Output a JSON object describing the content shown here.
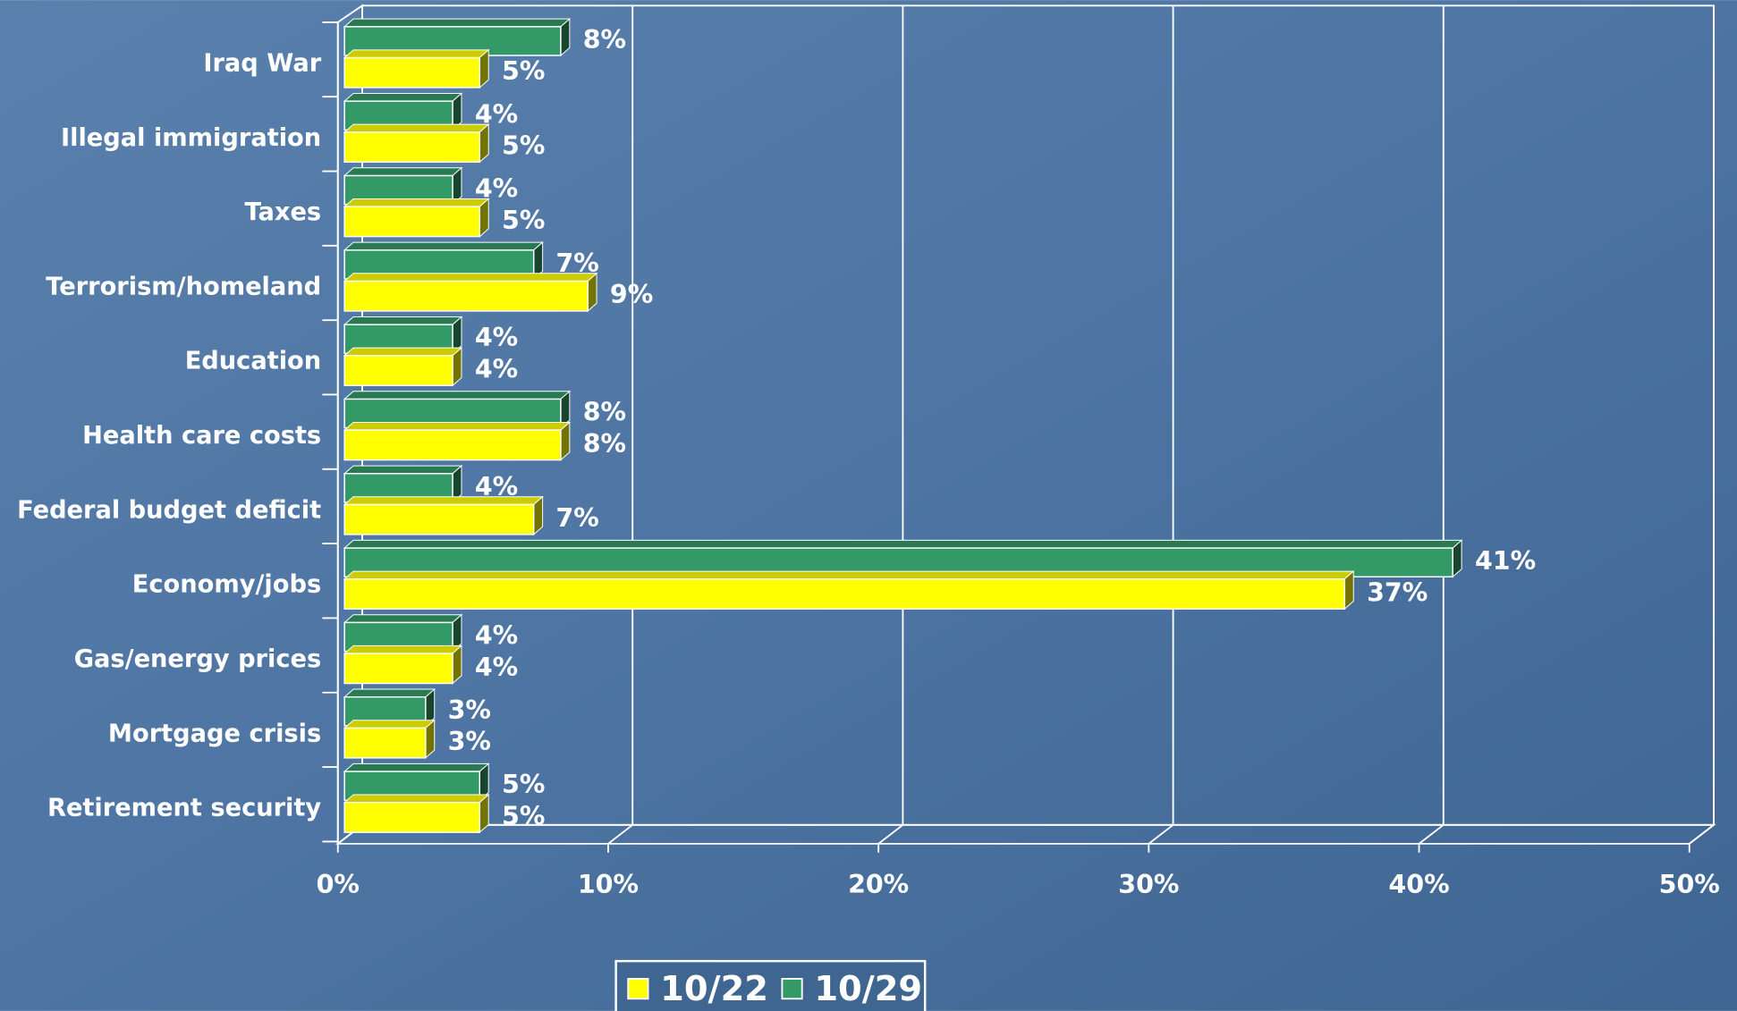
{
  "chart_data": {
    "type": "bar",
    "orientation": "horizontal",
    "categories": [
      "Iraq War",
      "Illegal immigration",
      "Taxes",
      "Terrorism/homeland",
      "Education",
      "Health care costs",
      "Federal budget deficit",
      "Economy/jobs",
      "Gas/energy prices",
      "Mortgage crisis",
      "Retirement security"
    ],
    "series": [
      {
        "name": "10/22",
        "color": "#ffff00",
        "values": [
          5,
          5,
          5,
          9,
          4,
          8,
          7,
          37,
          4,
          3,
          5
        ],
        "value_labels": [
          "5%",
          "5%",
          "5%",
          "9%",
          "4%",
          "8%",
          "7%",
          "37%",
          "4%",
          "3%",
          "5%"
        ]
      },
      {
        "name": "10/29",
        "color": "#339966",
        "values": [
          8,
          4,
          4,
          7,
          4,
          8,
          4,
          41,
          4,
          3,
          5
        ],
        "value_labels": [
          "8%",
          "4%",
          "4%",
          "7%",
          "4%",
          "8%",
          "4%",
          "41%",
          "4%",
          "3%",
          "5%"
        ]
      }
    ],
    "xlim": [
      0,
      50
    ],
    "xticks": [
      {
        "value": 0,
        "label": "0%"
      },
      {
        "value": 10,
        "label": "10%"
      },
      {
        "value": 20,
        "label": "20%"
      },
      {
        "value": 30,
        "label": "30%"
      },
      {
        "value": 40,
        "label": "40%"
      },
      {
        "value": 50,
        "label": "50%"
      }
    ],
    "grid": true,
    "legend": "bottom"
  }
}
